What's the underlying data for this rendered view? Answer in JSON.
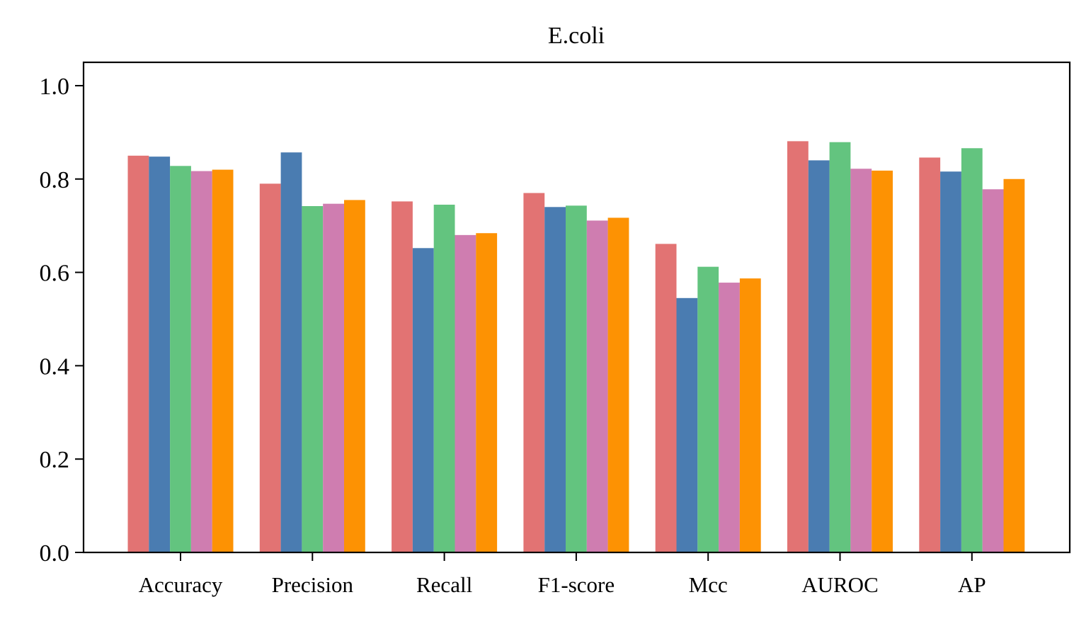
{
  "chart_data": {
    "type": "bar",
    "title": "E.coli",
    "xlabel": "",
    "ylabel": "",
    "categories": [
      "Accuracy",
      "Precision",
      "Recall",
      "F1-score",
      "Mcc",
      "AUROC",
      "AP"
    ],
    "ylim": [
      0,
      1.05
    ],
    "yticks": [
      "0.0",
      "0.2",
      "0.4",
      "0.6",
      "0.8",
      "1.0"
    ],
    "grid": false,
    "legend": "none",
    "series": [
      {
        "color": "#e27373",
        "values": [
          0.85,
          0.79,
          0.752,
          0.77,
          0.661,
          0.881,
          0.846
        ]
      },
      {
        "color": "#4a7cb1",
        "values": [
          0.848,
          0.857,
          0.652,
          0.74,
          0.545,
          0.84,
          0.816
        ]
      },
      {
        "color": "#63c47f",
        "values": [
          0.828,
          0.742,
          0.745,
          0.743,
          0.612,
          0.879,
          0.866
        ]
      },
      {
        "color": "#cf7db0",
        "values": [
          0.817,
          0.747,
          0.68,
          0.711,
          0.578,
          0.822,
          0.778
        ]
      },
      {
        "color": "#fd9203",
        "values": [
          0.82,
          0.755,
          0.684,
          0.717,
          0.587,
          0.818,
          0.8
        ]
      }
    ]
  }
}
